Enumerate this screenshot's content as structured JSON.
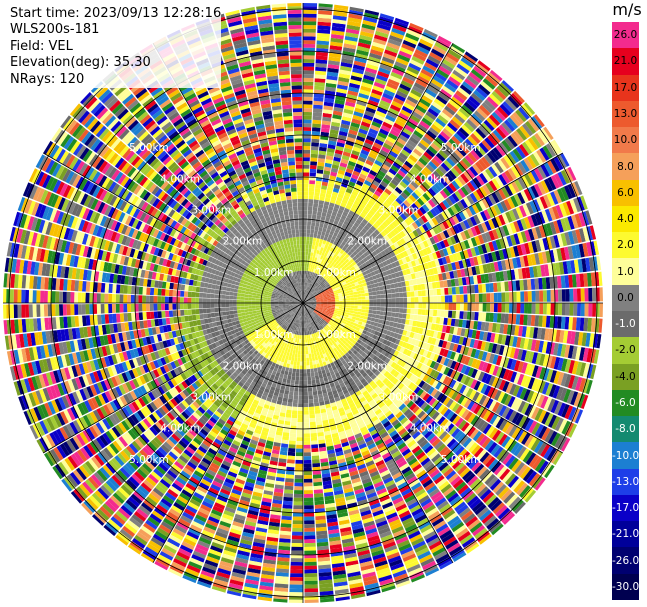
{
  "header": {
    "start_time": "Start time: 2023/09/13 12:28:16",
    "instrument": "WLS200s-181",
    "field": "Field: VEL",
    "elevation": "Elevation(deg): 35.30",
    "nrays": "NRays: 120"
  },
  "colorbar": {
    "unit": "m/s",
    "levels": [
      {
        "label": "26.0",
        "color": "#f32b8e",
        "text": "dark"
      },
      {
        "label": "21.0",
        "color": "#e6001e",
        "text": "dark"
      },
      {
        "label": "17.0",
        "color": "#e8341c",
        "text": "dark"
      },
      {
        "label": "13.0",
        "color": "#ed5a2e",
        "text": "dark"
      },
      {
        "label": "10.0",
        "color": "#f17a4a",
        "text": "dark"
      },
      {
        "label": "8.0",
        "color": "#f5a05a",
        "text": "dark"
      },
      {
        "label": "6.0",
        "color": "#f8c000",
        "text": "dark"
      },
      {
        "label": "4.0",
        "color": "#fbe900",
        "text": "dark"
      },
      {
        "label": "2.0",
        "color": "#fdfa30",
        "text": "dark"
      },
      {
        "label": "1.0",
        "color": "#fefe9a",
        "text": "dark"
      },
      {
        "label": "0.0",
        "color": "#808080",
        "text": "dark"
      },
      {
        "label": "-1.0",
        "color": "#6b6b6b",
        "text": "light"
      },
      {
        "label": "-2.0",
        "color": "#a4cc34",
        "text": "dark"
      },
      {
        "label": "-4.0",
        "color": "#7aa023",
        "text": "dark"
      },
      {
        "label": "-6.0",
        "color": "#228b22",
        "text": "light"
      },
      {
        "label": "-8.0",
        "color": "#148a70",
        "text": "light"
      },
      {
        "label": "-10.0",
        "color": "#1c7fd2",
        "text": "light"
      },
      {
        "label": "-13.0",
        "color": "#1e3ee8",
        "text": "light"
      },
      {
        "label": "-17.0",
        "color": "#0a00c8",
        "text": "light"
      },
      {
        "label": "-21.0",
        "color": "#00009a",
        "text": "light"
      },
      {
        "label": "-26.0",
        "color": "#000070",
        "text": "light"
      },
      {
        "label": "-30.0",
        "color": "#000050",
        "text": "light"
      }
    ]
  },
  "range_rings": {
    "labels": [
      "1.00km",
      "2.00km",
      "3.00km",
      "4.00km",
      "5.00km"
    ]
  },
  "palette": {
    "noise": [
      "#f32b8e",
      "#e6001e",
      "#fdfa30",
      "#0a00c8",
      "#1c7fd2",
      "#228b22",
      "#a4cc34",
      "#f8c000",
      "#000070",
      "#808080",
      "#ed5a2e",
      "#1e3ee8",
      "#7aa023",
      "#f5a05a",
      "#6b6b6b",
      "#fefe9a"
    ],
    "signal_gray": "#808080",
    "signal_dark": "#6b6b6b",
    "signal_yellow": "#fdfa30",
    "signal_light_yellow": "#fefe9a",
    "signal_green": "#a4cc34",
    "signal_olive": "#7aa023",
    "signal_orange": "#ed5a2e",
    "grid": "#000000"
  }
}
